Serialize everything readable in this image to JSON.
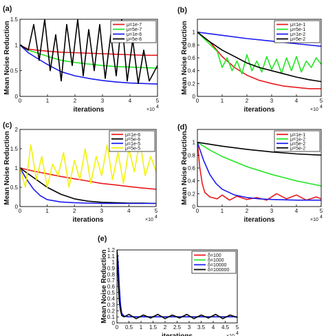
{
  "chart_data": [
    {
      "panel": "(a)",
      "type": "line",
      "xlabel": "iterations",
      "ylabel": "Mean Noise Reduction",
      "x_multiplier": "×10",
      "x_multiplier_exp": "4",
      "xlim": [
        0,
        5
      ],
      "ylim": [
        0,
        1.5
      ],
      "xticks": [
        0,
        1,
        2,
        3,
        4,
        5
      ],
      "yticks": [
        0,
        0.5,
        1,
        1.5
      ],
      "legend_position": "top-right",
      "grid": false,
      "series": [
        {
          "name": "μ=1e-7",
          "color": "#e8191c",
          "x": [
            0,
            0.3,
            0.6,
            1,
            1.5,
            2,
            2.5,
            3,
            3.5,
            4,
            4.5,
            5
          ],
          "y": [
            1.0,
            0.92,
            0.9,
            0.88,
            0.86,
            0.85,
            0.84,
            0.83,
            0.82,
            0.81,
            0.8,
            0.8
          ]
        },
        {
          "name": "μ=5e-7",
          "color": "#22e622",
          "x": [
            0,
            0.3,
            0.6,
            1,
            1.5,
            2,
            2.5,
            3,
            3.5,
            4,
            4.5,
            5
          ],
          "y": [
            1.0,
            0.9,
            0.85,
            0.78,
            0.7,
            0.66,
            0.63,
            0.6,
            0.58,
            0.57,
            0.56,
            0.55
          ]
        },
        {
          "name": "μ=1e-6",
          "color": "#1a1af0",
          "x": [
            0,
            0.3,
            0.6,
            1,
            1.5,
            2,
            2.5,
            3,
            3.5,
            4,
            4.5,
            5
          ],
          "y": [
            1.0,
            0.85,
            0.75,
            0.62,
            0.48,
            0.4,
            0.35,
            0.31,
            0.28,
            0.26,
            0.25,
            0.24
          ]
        },
        {
          "name": "μ=5e-6",
          "color": "#000000",
          "x": [
            0,
            0.3,
            0.5,
            0.7,
            0.9,
            1.1,
            1.3,
            1.5,
            1.7,
            1.9,
            2.1,
            2.3,
            2.5,
            2.7,
            2.9,
            3.1,
            3.3,
            3.5,
            3.7,
            3.9,
            4.1,
            4.3,
            4.5,
            4.7,
            5
          ],
          "y": [
            1.0,
            0.9,
            1.4,
            0.7,
            1.5,
            0.5,
            1.2,
            0.3,
            1.4,
            0.6,
            1.5,
            0.4,
            1.3,
            0.5,
            1.4,
            0.35,
            1.2,
            0.4,
            1.5,
            0.3,
            1.1,
            0.25,
            0.9,
            0.3,
            0.6
          ]
        }
      ]
    },
    {
      "panel": "(b)",
      "type": "line",
      "xlabel": "iterations",
      "ylabel": "Mean Noise Reduction",
      "x_multiplier": "×10",
      "x_multiplier_exp": "4",
      "xlim": [
        0,
        5
      ],
      "ylim": [
        0,
        1.2
      ],
      "xticks": [
        0,
        1,
        2,
        3,
        4,
        5
      ],
      "yticks": [
        0,
        0.2,
        0.4,
        0.6,
        0.8,
        1
      ],
      "legend_position": "top-right",
      "grid": false,
      "series": [
        {
          "name": "μ=1e-1",
          "color": "#e8191c",
          "x": [
            0,
            0.5,
            1,
            1.5,
            2,
            2.5,
            3,
            3.5,
            4,
            4.5,
            5
          ],
          "y": [
            1.0,
            0.85,
            0.62,
            0.45,
            0.33,
            0.25,
            0.2,
            0.16,
            0.14,
            0.12,
            0.12
          ]
        },
        {
          "name": "μ=5e-1",
          "color": "#22e622",
          "x": [
            0,
            0.4,
            0.8,
            1.0,
            1.2,
            1.4,
            1.6,
            1.8,
            2.0,
            2.2,
            2.4,
            2.6,
            2.8,
            3.0,
            3.2,
            3.4,
            3.6,
            3.8,
            4.0,
            4.2,
            4.4,
            4.6,
            4.8,
            5.0
          ],
          "y": [
            1.0,
            0.85,
            0.7,
            0.45,
            0.6,
            0.4,
            0.55,
            0.35,
            0.65,
            0.4,
            0.55,
            0.38,
            0.62,
            0.42,
            0.58,
            0.36,
            0.6,
            0.4,
            0.62,
            0.38,
            0.55,
            0.45,
            0.6,
            0.5
          ]
        },
        {
          "name": "μ=1e-2",
          "color": "#1a1af0",
          "x": [
            0,
            1,
            2,
            3,
            4,
            5
          ],
          "y": [
            1.0,
            0.95,
            0.9,
            0.86,
            0.82,
            0.78
          ]
        },
        {
          "name": "μ=5e-2",
          "color": "#000000",
          "x": [
            0,
            0.5,
            1,
            1.5,
            2,
            2.5,
            3,
            3.5,
            4,
            4.5,
            5
          ],
          "y": [
            1.0,
            0.85,
            0.72,
            0.62,
            0.52,
            0.45,
            0.4,
            0.35,
            0.3,
            0.26,
            0.23
          ]
        }
      ]
    },
    {
      "panel": "(c)",
      "type": "line",
      "xlabel": "iterations",
      "ylabel": "Mean Noise Reduction",
      "x_multiplier": "×10",
      "x_multiplier_exp": "4",
      "xlim": [
        0,
        5
      ],
      "ylim": [
        0,
        2
      ],
      "xticks": [
        0,
        1,
        2,
        3,
        4,
        5
      ],
      "yticks": [
        0,
        0.5,
        1,
        1.5,
        2
      ],
      "legend_position": "top-right",
      "grid": false,
      "series": [
        {
          "name": "μ=1e-6",
          "color": "#e8191c",
          "x": [
            0,
            0.5,
            1,
            1.5,
            2,
            2.5,
            3,
            3.5,
            4,
            4.5,
            5
          ],
          "y": [
            1.0,
            0.92,
            0.85,
            0.78,
            0.72,
            0.66,
            0.6,
            0.56,
            0.52,
            0.48,
            0.45
          ]
        },
        {
          "name": "μ=5e-6",
          "color": "#000000",
          "x": [
            0,
            0.5,
            1,
            1.5,
            2,
            2.5,
            3,
            3.5,
            4,
            4.5,
            5
          ],
          "y": [
            1.0,
            0.75,
            0.5,
            0.32,
            0.2,
            0.14,
            0.11,
            0.1,
            0.09,
            0.09,
            0.08
          ]
        },
        {
          "name": "μ=1e-5",
          "color": "#1a1af0",
          "x": [
            0,
            0.25,
            0.5,
            0.75,
            1,
            1.5,
            2,
            2.5,
            3,
            4,
            5
          ],
          "y": [
            1.0,
            0.7,
            0.45,
            0.28,
            0.18,
            0.12,
            0.1,
            0.09,
            0.08,
            0.08,
            0.08
          ]
        },
        {
          "name": "μ=5e-5",
          "color": "#f2f20a",
          "x": [
            0,
            0.2,
            0.4,
            0.6,
            0.8,
            1.0,
            1.2,
            1.4,
            1.6,
            1.8,
            2.0,
            2.2,
            2.4,
            2.6,
            2.8,
            3.0,
            3.2,
            3.4,
            3.6,
            3.8,
            4.0,
            4.2,
            4.4,
            4.6,
            4.8,
            5.0
          ],
          "y": [
            1.0,
            0.5,
            1.6,
            0.7,
            1.3,
            0.5,
            1.1,
            0.8,
            1.4,
            0.5,
            1.2,
            0.7,
            1.5,
            0.6,
            1.3,
            0.8,
            1.6,
            0.7,
            1.4,
            0.6,
            1.5,
            0.9,
            1.7,
            0.8,
            1.3,
            0.9
          ]
        }
      ]
    },
    {
      "panel": "(d)",
      "type": "line",
      "xlabel": "iterations",
      "ylabel": "Mean Noise Reduction",
      "x_multiplier": "×10",
      "x_multiplier_exp": "4",
      "xlim": [
        0,
        5
      ],
      "ylim": [
        0,
        1.2
      ],
      "xticks": [
        0,
        1,
        2,
        3,
        4,
        5
      ],
      "yticks": [
        0,
        0.2,
        0.4,
        0.6,
        0.8,
        1
      ],
      "legend_position": "top-right",
      "grid": false,
      "series": [
        {
          "name": "μ=1e-1",
          "color": "#e8191c",
          "x": [
            0,
            0.1,
            0.2,
            0.3,
            0.5,
            0.8,
            1.0,
            1.3,
            1.6,
            2.0,
            2.4,
            2.8,
            3.2,
            3.6,
            4.0,
            4.4,
            4.8,
            5.0
          ],
          "y": [
            1.0,
            0.6,
            0.35,
            0.22,
            0.15,
            0.12,
            0.18,
            0.1,
            0.16,
            0.11,
            0.14,
            0.1,
            0.2,
            0.12,
            0.18,
            0.1,
            0.15,
            0.12
          ]
        },
        {
          "name": "μ=1e-2",
          "color": "#22e622",
          "x": [
            0,
            0.5,
            1,
            1.5,
            2,
            2.5,
            3,
            3.5,
            4,
            4.5,
            5
          ],
          "y": [
            1.0,
            0.88,
            0.78,
            0.7,
            0.62,
            0.56,
            0.5,
            0.45,
            0.4,
            0.36,
            0.32
          ]
        },
        {
          "name": "μ=5e-2",
          "color": "#1a1af0",
          "x": [
            0,
            0.25,
            0.5,
            0.75,
            1,
            1.5,
            2,
            2.5,
            3,
            4,
            5
          ],
          "y": [
            1.0,
            0.72,
            0.5,
            0.36,
            0.27,
            0.18,
            0.14,
            0.12,
            0.11,
            0.1,
            0.1
          ]
        },
        {
          "name": "μ=5e-2",
          "color": "#000000",
          "x": [
            0,
            1,
            2,
            3,
            4,
            5
          ],
          "y": [
            1.0,
            0.94,
            0.89,
            0.85,
            0.82,
            0.8
          ]
        }
      ]
    },
    {
      "panel": "(e)",
      "type": "line",
      "xlabel": "iterations",
      "ylabel": "Mean Noise Reduction",
      "x_multiplier": "×10",
      "x_multiplier_exp": "4",
      "xlim": [
        0,
        5
      ],
      "ylim": [
        0,
        1.2
      ],
      "xticks": [
        0,
        0.5,
        1,
        1.5,
        2,
        2.5,
        3,
        3.5,
        4,
        4.5,
        5
      ],
      "yticks": [
        0,
        0.1,
        0.2,
        0.3,
        0.4,
        0.5,
        0.6,
        0.7,
        0.8,
        0.9,
        1,
        1.1,
        1.2
      ],
      "legend_position": "top-right",
      "grid": false,
      "series": [
        {
          "name": "δ=100",
          "color": "#e8191c",
          "x": [
            0,
            0.05,
            0.1,
            0.15,
            0.2,
            0.3,
            0.5,
            1,
            2,
            3,
            4,
            5
          ],
          "y": [
            1.2,
            0.8,
            0.4,
            0.2,
            0.14,
            0.11,
            0.1,
            0.1,
            0.1,
            0.1,
            0.1,
            0.1
          ]
        },
        {
          "name": "δ=1000",
          "color": "#22e622",
          "x": [
            0,
            0.05,
            0.1,
            0.15,
            0.2,
            0.3,
            0.5,
            1,
            2,
            3,
            4,
            5
          ],
          "y": [
            1.2,
            0.9,
            0.5,
            0.25,
            0.15,
            0.11,
            0.1,
            0.1,
            0.1,
            0.1,
            0.1,
            0.1
          ]
        },
        {
          "name": "δ=10000",
          "color": "#1a1af0",
          "x": [
            0,
            0.05,
            0.1,
            0.15,
            0.2,
            0.3,
            0.5,
            1,
            2,
            3,
            4,
            5
          ],
          "y": [
            1.2,
            1.0,
            0.6,
            0.3,
            0.16,
            0.11,
            0.1,
            0.1,
            0.1,
            0.1,
            0.1,
            0.1
          ]
        },
        {
          "name": "δ=100000",
          "color": "#000000",
          "x": [
            0,
            0.05,
            0.1,
            0.15,
            0.2,
            0.3,
            0.5,
            0.8,
            1.1,
            1.4,
            1.7,
            2.0,
            2.3,
            2.6,
            2.9,
            3.2,
            3.5,
            3.8,
            4.1,
            4.4,
            4.7,
            5.0
          ],
          "y": [
            1.2,
            0.7,
            0.35,
            0.2,
            0.12,
            0.1,
            0.14,
            0.07,
            0.13,
            0.08,
            0.14,
            0.07,
            0.13,
            0.08,
            0.14,
            0.07,
            0.13,
            0.08,
            0.14,
            0.07,
            0.13,
            0.09
          ]
        }
      ]
    }
  ]
}
